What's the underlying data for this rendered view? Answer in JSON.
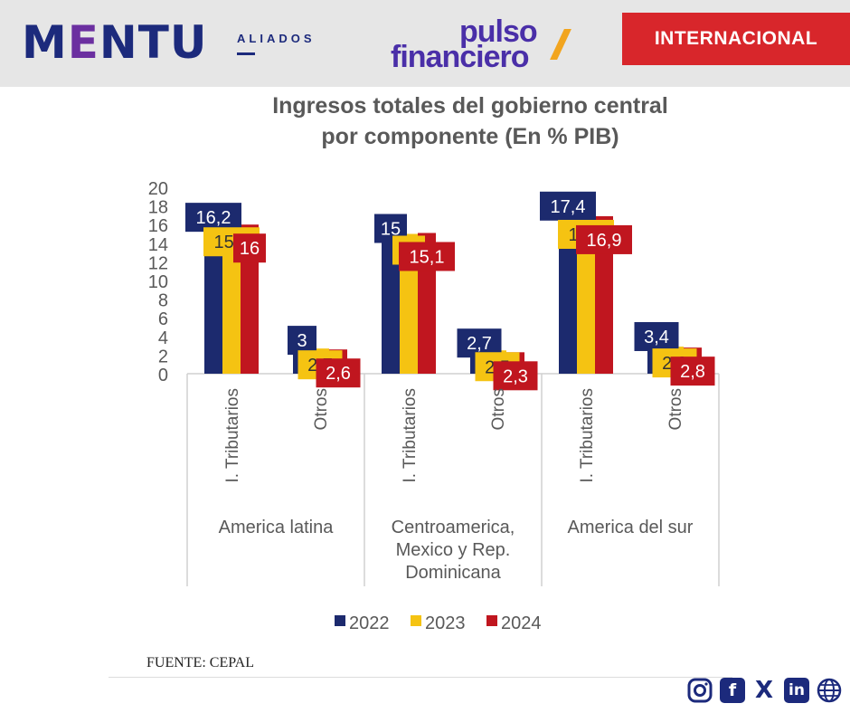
{
  "header": {
    "brand_left_main_1": "M",
    "brand_left_main_2": "E",
    "brand_left_main_3": "NTU",
    "brand_left_sub": "ALIADOS",
    "brand_center_line1": "pulso",
    "brand_center_line2": "financiero",
    "section_badge": "INTERNACIONAL"
  },
  "title_line1": "Ingresos totales del gobierno central",
  "title_line2": "por componente (En % PIB)",
  "source": "FUENTE: CEPAL",
  "social": {
    "facebook_label": "f",
    "x_label": "X",
    "linkedin_label": "in"
  },
  "colors": {
    "2022": "#1c2a6e",
    "2023": "#f5c312",
    "2024": "#c0161f",
    "header_bg": "#e6e6e6",
    "badge_bg": "#d8262b"
  },
  "chart_data": {
    "type": "bar",
    "yticks": [
      0,
      2,
      4,
      6,
      8,
      10,
      12,
      14,
      16,
      18,
      20
    ],
    "ylim": [
      0,
      20
    ],
    "legend_position": "bottom",
    "grid": false,
    "groups": [
      {
        "name": "America latina",
        "categories": [
          "I. Tributarios",
          "Otros"
        ]
      },
      {
        "name": "Centroamerica, Mexico y Rep. Dominicana",
        "categories": [
          "I. Tributarios",
          "Otros"
        ]
      },
      {
        "name": "America del sur",
        "categories": [
          "I. Tributarios",
          "Otros"
        ]
      }
    ],
    "series": [
      {
        "name": "2022",
        "values": [
          16.2,
          3,
          15,
          2.7,
          17.4,
          3.4
        ],
        "labels": [
          "16,2",
          "3",
          "15",
          "2,7",
          "17,4",
          "3,4"
        ]
      },
      {
        "name": "2023",
        "values": [
          15.9,
          2.7,
          15,
          2.5,
          16.7,
          2.9
        ],
        "labels": [
          "15,9",
          "2,7",
          "15",
          "2,5",
          "16,7",
          "2,9"
        ]
      },
      {
        "name": "2024",
        "values": [
          16,
          2.6,
          15.1,
          2.3,
          16.9,
          2.8
        ],
        "labels": [
          "16",
          "2,6",
          "15,1",
          "2,3",
          "16,9",
          "2,8"
        ]
      }
    ]
  }
}
